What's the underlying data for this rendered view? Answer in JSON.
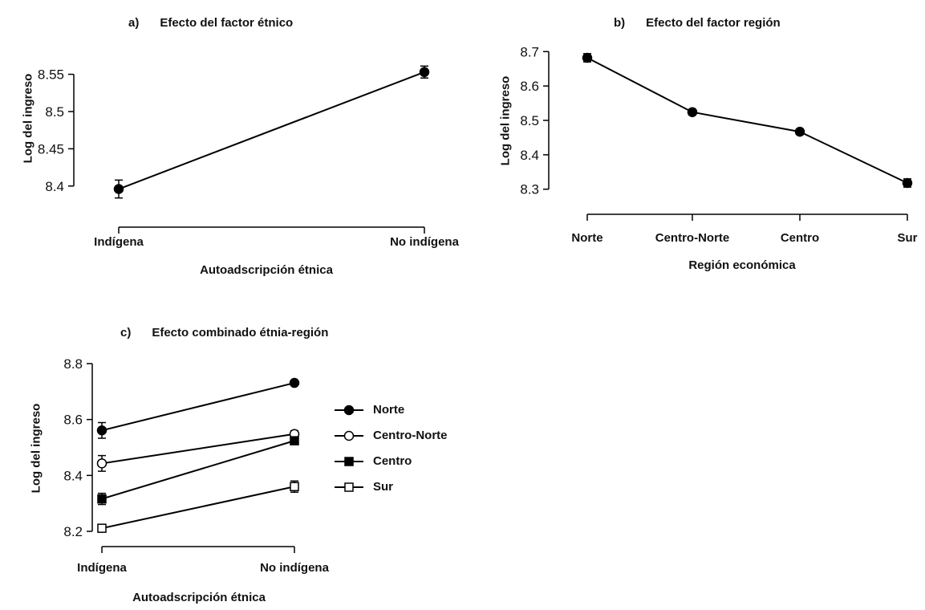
{
  "panels": [
    {
      "label": "a)",
      "title": "Efecto del factor étnico",
      "ylabel": "Log del ingreso",
      "xlabel": "Autoadscripción étnica"
    },
    {
      "label": "b)",
      "title": "Efecto del factor región",
      "ylabel": "Log del ingreso",
      "xlabel": "Región económica"
    },
    {
      "label": "c)",
      "title": "Efecto combinado étnia-región",
      "ylabel": "Log del ingreso",
      "xlabel": "Autoadscripción étnica"
    }
  ],
  "legend": [
    "Norte",
    "Centro-Norte",
    "Centro",
    "Sur"
  ],
  "chart_data": [
    {
      "type": "line",
      "categories": [
        "Indígena",
        "No indígena"
      ],
      "series": [
        {
          "values": [
            8.396,
            8.553
          ],
          "errors": [
            0.012,
            0.008
          ]
        }
      ],
      "yticks": [
        8.4,
        8.45,
        8.5,
        8.55
      ],
      "ytick_labels": [
        "8.4",
        "8.45",
        "8.5",
        "8.55"
      ],
      "ylim": [
        8.375,
        8.57
      ]
    },
    {
      "type": "line",
      "categories": [
        "Norte",
        "Centro-Norte",
        "Centro",
        "Sur"
      ],
      "series": [
        {
          "values": [
            8.682,
            8.524,
            8.467,
            8.318
          ],
          "errors": [
            0.012,
            0.008,
            0.008,
            0.012
          ]
        }
      ],
      "yticks": [
        8.3,
        8.4,
        8.5,
        8.6,
        8.7
      ],
      "ytick_labels": [
        "8.3",
        "8.4",
        "8.5",
        "8.6",
        "8.7"
      ],
      "ylim": [
        8.29,
        8.71
      ]
    },
    {
      "type": "line",
      "categories": [
        "Indígena",
        "No indígena"
      ],
      "series": [
        {
          "name": "Norte",
          "marker": "circle-filled",
          "values": [
            8.561,
            8.731
          ],
          "errors": [
            0.028,
            0.008
          ]
        },
        {
          "name": "Centro-Norte",
          "marker": "circle-open",
          "values": [
            8.443,
            8.548
          ],
          "errors": [
            0.028,
            0.012
          ]
        },
        {
          "name": "Centro",
          "marker": "square-filled",
          "values": [
            8.316,
            8.524
          ],
          "errors": [
            0.02,
            0.01
          ]
        },
        {
          "name": "Sur",
          "marker": "square-open",
          "values": [
            8.211,
            8.36
          ],
          "errors": [
            0.012,
            0.02
          ]
        }
      ],
      "yticks": [
        8.2,
        8.4,
        8.6,
        8.8
      ],
      "ytick_labels": [
        "8.2",
        "8.4",
        "8.6",
        "8.8"
      ],
      "ylim": [
        8.2,
        8.8
      ]
    }
  ]
}
